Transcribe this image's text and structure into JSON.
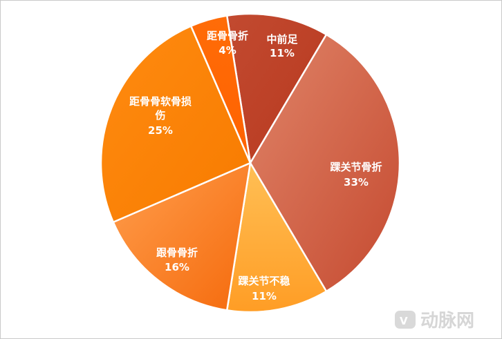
{
  "chart_data": {
    "type": "pie",
    "title": "",
    "slices": [
      {
        "label": "中前足",
        "value": 11,
        "pct": "11%",
        "color": "#c0432a"
      },
      {
        "label": "踝关节骨折",
        "value": 33,
        "pct": "33%",
        "color": "#d46a4e"
      },
      {
        "label": "踝关节不稳",
        "value": 11,
        "pct": "11%",
        "color": "#ffae3a"
      },
      {
        "label": "跟骨骨折",
        "value": 16,
        "pct": "16%",
        "color": "#ff8a2a"
      },
      {
        "label": "距骨骨软骨损伤",
        "label_lines": [
          "距骨骨软骨损",
          "伤"
        ],
        "value": 25,
        "pct": "25%",
        "color": "#ff8400"
      },
      {
        "label": "距骨骨折",
        "value": 4,
        "pct": "4%",
        "color": "#ff6a00"
      }
    ]
  },
  "watermark": {
    "text": "动脉网"
  }
}
